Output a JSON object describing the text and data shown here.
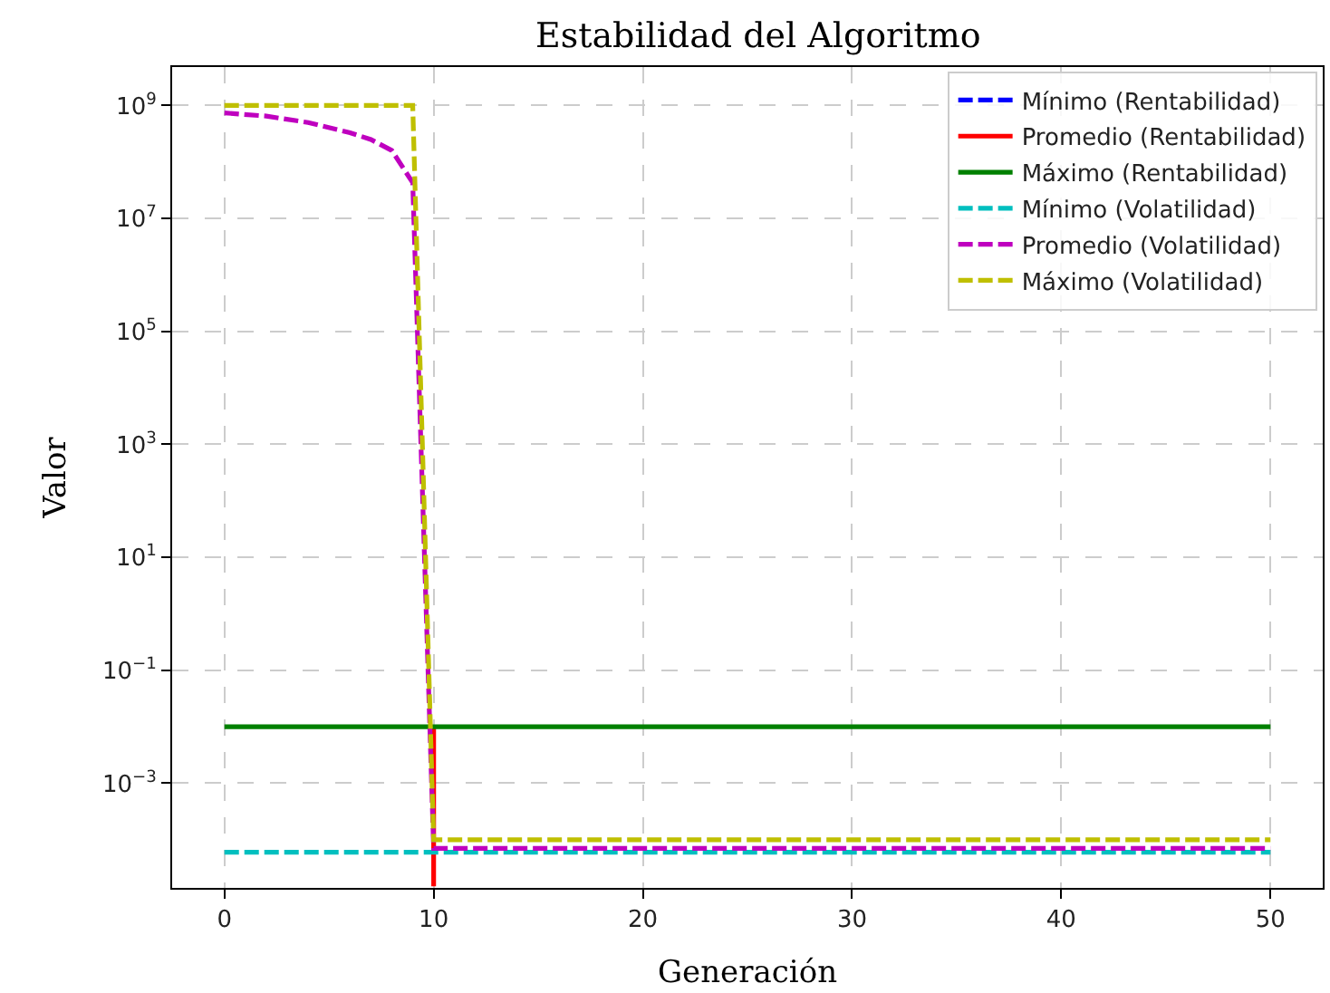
{
  "chart_data": {
    "type": "line",
    "title": "Estabilidad del Algoritmo",
    "xlabel": "Generación",
    "ylabel": "Valor",
    "log": "y",
    "grid": true,
    "legend": "top right",
    "xlim": [
      -2.5,
      52.5
    ],
    "xticks": [
      0,
      10,
      20,
      30,
      40,
      50
    ],
    "ylim": [
      1.4e-05,
      4800000000.0
    ],
    "yticks": [
      {
        "value": 0.001,
        "label": "10$^{−3}$"
      },
      {
        "value": 0.1,
        "label": "10$^{−1}$"
      },
      {
        "value": 10,
        "label": "10$^{1}$"
      },
      {
        "value": 1000,
        "label": "10$^{3}$"
      },
      {
        "value": 100000,
        "label": "10$^{5}$"
      },
      {
        "value": 10000000,
        "label": "10$^{7}$"
      },
      {
        "value": 1000000000,
        "label": "10$^{9}$"
      }
    ],
    "series": [
      {
        "name": "Mínimo (Rentabilidad)",
        "color": "#0000ff",
        "line_style": "dashed"
      },
      {
        "name": "Promedio (Rentabilidad)",
        "color": "#ff0000",
        "line_style": "solid",
        "x": [
          10,
          10
        ],
        "values": [
          0.01,
          1.5e-05
        ]
      },
      {
        "name": "Máximo (Rentabilidad)",
        "color": "#008000",
        "line_style": "solid",
        "x": [
          0,
          50
        ],
        "values": [
          0.01,
          0.01
        ]
      },
      {
        "name": "Mínimo (Volatilidad)",
        "color": "#00bfbf",
        "line_style": "dashed",
        "x": [
          0,
          50
        ],
        "values": [
          6e-05,
          6e-05
        ]
      },
      {
        "name": "Promedio (Volatilidad)",
        "color": "#bf00bf",
        "line_style": "dashed",
        "x": [
          0,
          2,
          4,
          6,
          7,
          8,
          9,
          10,
          50
        ],
        "values": [
          740000000.0,
          650000000.0,
          500000000.0,
          330000000.0,
          250000000.0,
          160000000.0,
          43000000.0,
          7e-05,
          7e-05
        ]
      },
      {
        "name": "Máximo (Volatilidad)",
        "color": "#bfbf00",
        "line_style": "dashed",
        "x": [
          0,
          9,
          10,
          50
        ],
        "values": [
          1000000000.0,
          1000000000.0,
          0.0001,
          0.0001
        ]
      }
    ]
  }
}
